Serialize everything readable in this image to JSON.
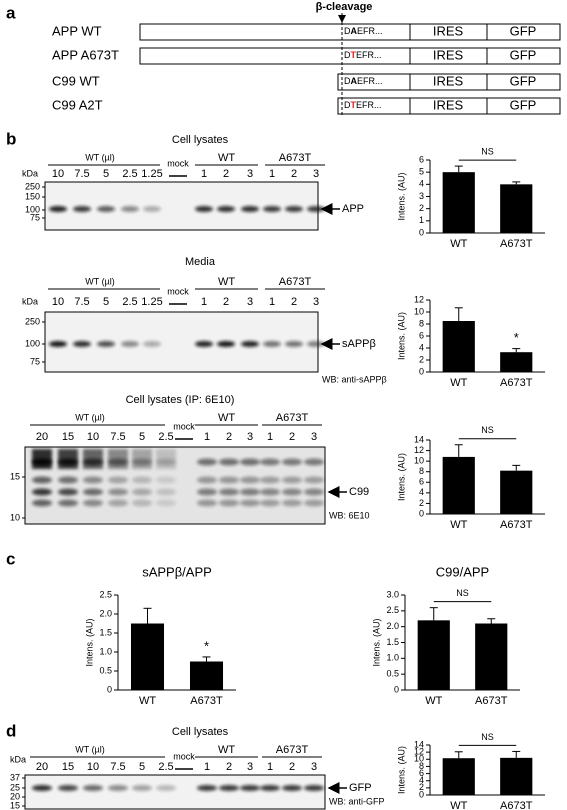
{
  "panel_labels": [
    "a",
    "b",
    "c",
    "d"
  ],
  "constructs": {
    "cleavage_label": "β-cleavage",
    "rows": [
      {
        "name": "APP WT",
        "prefix": "D",
        "residue": "A",
        "residue_color": "#000000",
        "suffix": "EFR...",
        "ires": "IRES",
        "gfp": "GFP"
      },
      {
        "name": "APP A673T",
        "prefix": "D",
        "residue": "T",
        "residue_color": "#e02020",
        "suffix": "EFR...",
        "ires": "IRES",
        "gfp": "GFP"
      },
      {
        "name": "C99 WT",
        "prefix": "D",
        "residue": "A",
        "residue_color": "#000000",
        "suffix": "EFR...",
        "ires": "IRES",
        "gfp": "GFP"
      },
      {
        "name": "C99 A2T",
        "prefix": "D",
        "residue": "T",
        "residue_color": "#e02020",
        "suffix": "EFR...",
        "ires": "IRES",
        "gfp": "GFP"
      }
    ]
  },
  "blots": [
    {
      "title": "Cell lysates",
      "dilution_title": "WT (µl)",
      "dilution_lanes": [
        "10",
        "7.5",
        "5",
        "2.5",
        "1.25"
      ],
      "mock": "mock",
      "groups": [
        {
          "name": "WT",
          "lanes": [
            "1",
            "2",
            "3"
          ]
        },
        {
          "name": "A673T",
          "lanes": [
            "1",
            "2",
            "3"
          ]
        }
      ],
      "kda": "kDa",
      "markers": [
        "250",
        "150",
        "100",
        "75"
      ],
      "band_label": "APP"
    },
    {
      "title": "Media",
      "dilution_title": "WT (µl)",
      "dilution_lanes": [
        "10",
        "7.5",
        "5",
        "2.5",
        "1.25"
      ],
      "mock": "mock",
      "groups": [
        {
          "name": "WT",
          "lanes": [
            "1",
            "2",
            "3"
          ]
        },
        {
          "name": "A673T",
          "lanes": [
            "1",
            "2",
            "3"
          ]
        }
      ],
      "kda": "kDa",
      "markers": [
        "250",
        "100",
        "75"
      ],
      "band_label": "sAPPβ",
      "wb_label": "WB: anti-sAPPβ"
    },
    {
      "title": "Cell lysates (IP: 6E10)",
      "dilution_title": "WT (µl)",
      "dilution_lanes": [
        "20",
        "15",
        "10",
        "7.5",
        "5",
        "2.5"
      ],
      "mock": "mock",
      "groups": [
        {
          "name": "WT",
          "lanes": [
            "1",
            "2",
            "3"
          ]
        },
        {
          "name": "A673T",
          "lanes": [
            "1",
            "2",
            "3"
          ]
        }
      ],
      "markers": [
        "15",
        "10"
      ],
      "band_label": "C99",
      "wb_label": "WB: 6E10"
    },
    {
      "title": "Cell lysates",
      "dilution_title": "WT (µl)",
      "dilution_lanes": [
        "20",
        "15",
        "10",
        "7.5",
        "5",
        "2.5"
      ],
      "mock": "mock",
      "groups": [
        {
          "name": "WT",
          "lanes": [
            "1",
            "2",
            "3"
          ]
        },
        {
          "name": "A673T",
          "lanes": [
            "1",
            "2",
            "3"
          ]
        }
      ],
      "kda": "kDa",
      "markers": [
        "37",
        "25",
        "20",
        "15"
      ],
      "band_label": "GFP",
      "wb_label": "WB: anti-GFP"
    }
  ],
  "chart_data": [
    {
      "type": "bar",
      "categories": [
        "WT",
        "A673T"
      ],
      "values": [
        5.0,
        4.0
      ],
      "errors": [
        0.5,
        0.2
      ],
      "color": "#000000",
      "ylabel": "Intens. (AU)",
      "ylim": [
        0,
        6
      ],
      "yticks": [
        0,
        1,
        2,
        3,
        4,
        5,
        6
      ],
      "significance": "NS"
    },
    {
      "type": "bar",
      "categories": [
        "WT",
        "A673T"
      ],
      "values": [
        8.5,
        3.3
      ],
      "errors": [
        2.2,
        0.6
      ],
      "color": "#000000",
      "ylabel": "Intens. (AU)",
      "ylim": [
        0,
        12
      ],
      "yticks": [
        0,
        2,
        4,
        6,
        8,
        10,
        12
      ],
      "significance": "*"
    },
    {
      "type": "bar",
      "categories": [
        "WT",
        "A673T"
      ],
      "values": [
        10.8,
        8.2
      ],
      "errors": [
        2.3,
        1.0
      ],
      "color": "#000000",
      "ylabel": "Intens. (AU)",
      "ylim": [
        0,
        14
      ],
      "yticks": [
        0,
        2,
        4,
        6,
        8,
        10,
        12,
        14
      ],
      "significance": "NS"
    },
    {
      "type": "bar",
      "title": "sAPPβ/APP",
      "categories": [
        "WT",
        "A673T"
      ],
      "values": [
        1.75,
        0.75
      ],
      "errors": [
        0.4,
        0.12
      ],
      "color": "#000000",
      "ylabel": "Intens. (AU)",
      "ylim": [
        0,
        2.5
      ],
      "yticks": [
        0,
        0.5,
        {
          "value": 1,
          "label": "1.0"
        },
        1.5,
        {
          "value": 2,
          "label": "2.0"
        },
        2.5
      ],
      "significance": "*"
    },
    {
      "type": "bar",
      "title": "C99/APP",
      "categories": [
        "WT",
        "A673T"
      ],
      "values": [
        2.2,
        2.1
      ],
      "errors": [
        0.4,
        0.15
      ],
      "color": "#000000",
      "ylabel": "Intens. (AU)",
      "ylim": [
        0,
        3
      ],
      "yticks": [
        0,
        0.5,
        {
          "value": 1,
          "label": "1.0"
        },
        1.5,
        {
          "value": 2,
          "label": "2.0"
        },
        2.5,
        {
          "value": 3,
          "label": "3.0"
        }
      ],
      "significance": "NS"
    },
    {
      "type": "bar",
      "categories": [
        "WT",
        "A673T"
      ],
      "values": [
        10.3,
        10.4
      ],
      "errors": [
        1.8,
        1.8
      ],
      "color": "#000000",
      "ylabel": "Intens. (AU)",
      "ylim": [
        0,
        14
      ],
      "yticks": [
        0,
        2,
        4,
        6,
        8,
        10,
        12,
        14
      ],
      "significance": "NS"
    }
  ]
}
